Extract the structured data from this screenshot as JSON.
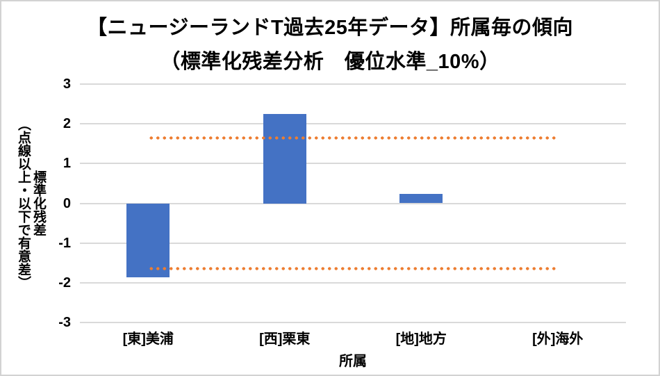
{
  "chart": {
    "title_line1": "【ニュージーランドT過去25年データ】所属毎の傾向",
    "title_line2": "（標準化残差分析　優位水準_10%）",
    "y_axis": {
      "title_main": "標準化残差",
      "title_sub": "（点線以上・以下で有意差）",
      "ticks": [
        "3",
        "2",
        "1",
        "0",
        "-1",
        "-2",
        "-3"
      ]
    },
    "x_axis": {
      "title": "所属"
    }
  },
  "chart_data": {
    "type": "bar",
    "title": "【ニュージーランドT過去25年データ】所属毎の傾向（標準化残差分析　優位水準_10%）",
    "categories": [
      "[東]美浦",
      "[西]栗東",
      "[地]地方",
      "[外]海外"
    ],
    "values": [
      -1.87,
      2.25,
      0.23,
      0
    ],
    "xlabel": "所属",
    "ylabel": "標準化残差（点線以上・以下で有意差）",
    "ylim": [
      -3,
      3
    ],
    "ytick_step": 1,
    "grid": true,
    "legend": false,
    "reference_lines": [
      1.645,
      -1.645
    ],
    "reference_line_style": "dotted",
    "reference_line_color": "#ED7D31",
    "bar_color": "#4472C4",
    "gridline_color": "#D9D9D9"
  }
}
